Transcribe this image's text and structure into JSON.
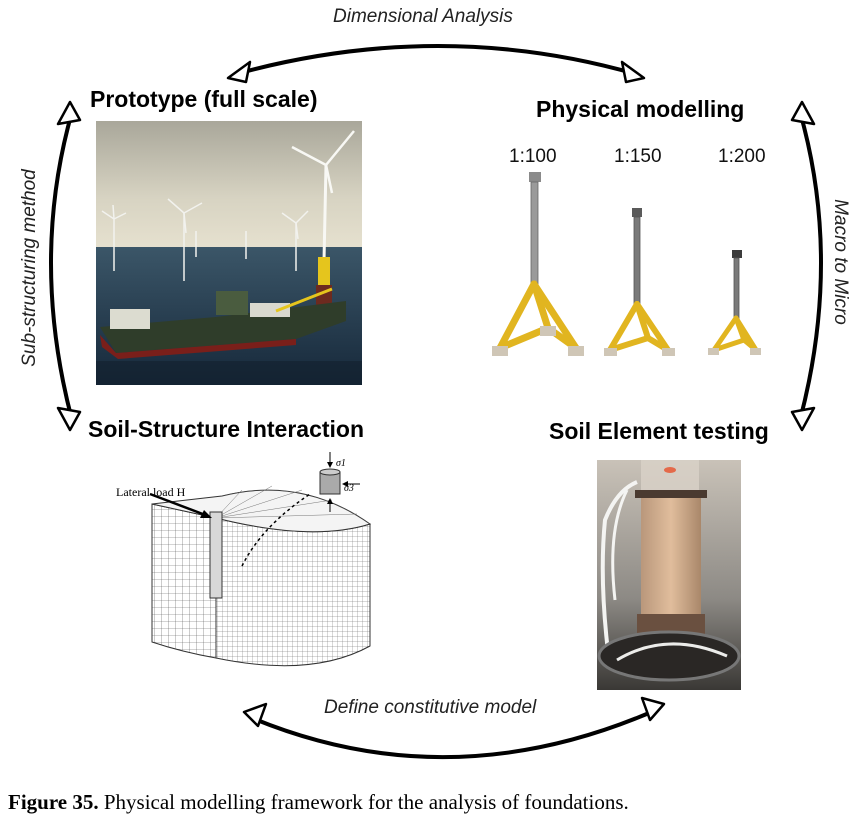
{
  "arrows": {
    "top": "Dimensional Analysis",
    "left": "Sub-structuring method",
    "right": "Macro to Micro",
    "bottom": "Define constitutive model"
  },
  "panels": {
    "prototype": {
      "title": "Prototype (full scale)"
    },
    "physical": {
      "title": "Physical modelling",
      "scales": [
        "1:100",
        "1:150",
        "1:200"
      ]
    },
    "ssi": {
      "title": "Soil-Structure Interaction",
      "load_label": "Lateral load H",
      "sigma1": "σ1",
      "sigma3": "σ3"
    },
    "element": {
      "title": "Soil Element testing"
    }
  },
  "caption": {
    "label": "Figure 35.",
    "text": " Physical modelling framework for the analysis of foundations."
  }
}
